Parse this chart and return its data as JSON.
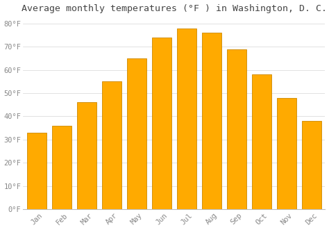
{
  "title": "Average monthly temperatures (°F ) in Washington, D. C.",
  "months": [
    "Jan",
    "Feb",
    "Mar",
    "Apr",
    "May",
    "Jun",
    "Jul",
    "Aug",
    "Sep",
    "Oct",
    "Nov",
    "Dec"
  ],
  "temperatures": [
    33,
    36,
    46,
    55,
    65,
    74,
    78,
    76,
    69,
    58,
    48,
    38
  ],
  "bar_color": "#FFAA00",
  "bar_edge_color": "#CC8800",
  "background_color": "#ffffff",
  "plot_bg_color": "#ffffff",
  "grid_color": "#dddddd",
  "ylim": [
    0,
    83
  ],
  "yticks": [
    0,
    10,
    20,
    30,
    40,
    50,
    60,
    70,
    80
  ],
  "ylabel_suffix": "°F",
  "title_fontsize": 9.5,
  "tick_fontsize": 7.5,
  "title_color": "#444444",
  "tick_color": "#888888",
  "bar_width": 0.78
}
